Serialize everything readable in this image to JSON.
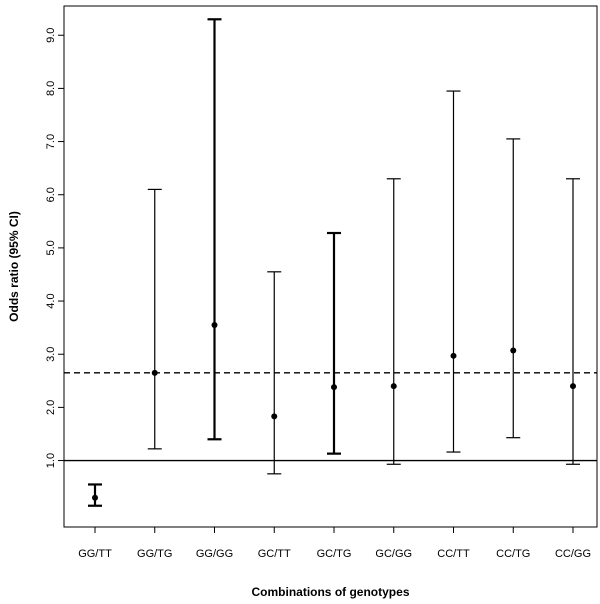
{
  "chart_data": {
    "type": "scatter",
    "subtype": "point-estimate-with-error-bars",
    "title": "",
    "xlabel": "Combinations of genotypes",
    "ylabel": "Odds ratio (95% CI)",
    "categories": [
      "GG/TT",
      "GG/TG",
      "GG/GG",
      "GC/TT",
      "GC/TG",
      "GC/GG",
      "CC/TT",
      "CC/TG",
      "CC/GG"
    ],
    "or": [
      0.3,
      2.65,
      3.55,
      1.83,
      2.38,
      2.4,
      2.97,
      3.07,
      2.4
    ],
    "ci_lower": [
      0.15,
      1.22,
      1.4,
      0.75,
      1.13,
      0.93,
      1.16,
      1.43,
      0.93
    ],
    "ci_upper": [
      0.55,
      6.1,
      9.3,
      4.55,
      5.28,
      6.3,
      7.95,
      7.05,
      6.3
    ],
    "ylim": [
      -0.25,
      9.55
    ],
    "yticks": [
      1,
      2,
      3,
      4,
      5,
      6,
      7,
      8,
      9
    ],
    "ytick_labels": [
      "1.0",
      "2.0",
      "3.0",
      "4.0",
      "5.0",
      "6.0",
      "7.0",
      "8.0",
      "9.0"
    ],
    "reference_lines": [
      {
        "y": 1.0,
        "style": "solid"
      },
      {
        "y": 2.65,
        "style": "dashed"
      }
    ],
    "grid": false,
    "legend": "none",
    "colors": {
      "marks": "#000000",
      "background": "#ffffff"
    }
  }
}
